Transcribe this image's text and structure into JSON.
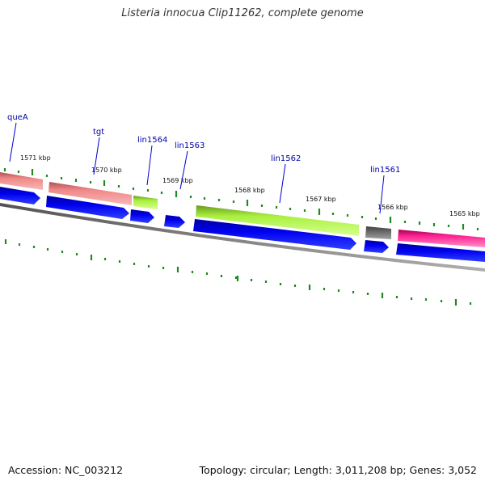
{
  "title": "Listeria innocua Clip11262, complete genome",
  "footer": {
    "accession": "Accession: NC_003212",
    "summary": "Topology: circular; Length: 3,011,208 bp; Genes: 3,052"
  },
  "kbp_labels": [
    "1571 kbp",
    "1570 kbp",
    "1569 kbp",
    "1568 kbp",
    "1567 kbp",
    "1566 kbp",
    "1565 kbp"
  ],
  "gene_labels": [
    "queA",
    "tgt",
    "lin1564",
    "lin1563",
    "lin1562",
    "lin1561"
  ],
  "colors": {
    "gene_label": "#0000aa",
    "cds_arrow": "#0000ee",
    "tick": "#228822",
    "backbone": "#808080",
    "queA_tgt_feature": "#f08080",
    "lin1564_lin1562_feature": "#a8f040",
    "lin1561_feature": "#606060",
    "right_feature": "#ff2090"
  }
}
